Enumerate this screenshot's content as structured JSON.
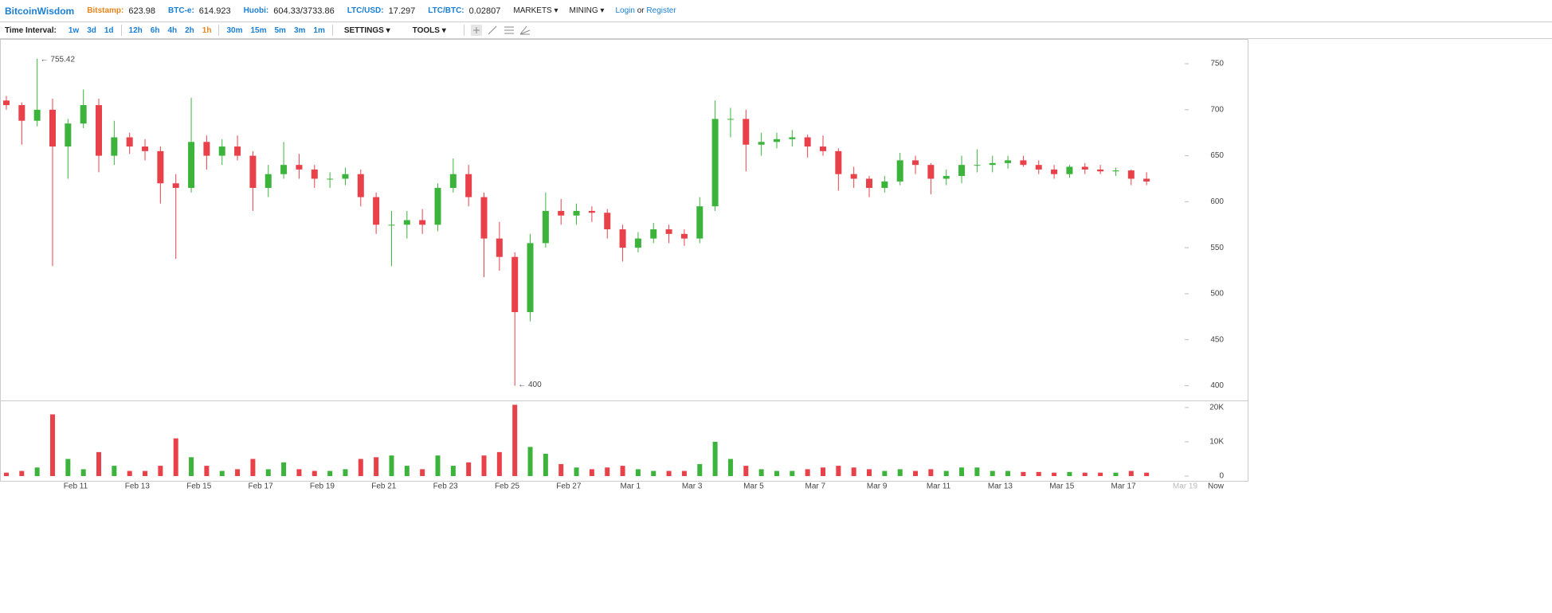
{
  "header": {
    "brand": "BitcoinWisdom",
    "tickers": [
      {
        "name": "Bitstamp:",
        "value": "623.98"
      },
      {
        "name": "BTC-e:",
        "value": "614.923"
      },
      {
        "name": "Huobi:",
        "value": "604.33/3733.86"
      },
      {
        "name": "LTC/USD:",
        "value": "17.297"
      },
      {
        "name": "LTC/BTC:",
        "value": "0.02807"
      }
    ],
    "menus": [
      "MARKETS",
      "MINING"
    ],
    "login": "Login",
    "or": "or",
    "register": "Register"
  },
  "toolbar": {
    "label": "Time Interval:",
    "intervals": [
      "1w",
      "3d",
      "1d",
      "12h",
      "6h",
      "4h",
      "2h",
      "1h",
      "30m",
      "15m",
      "5m",
      "3m",
      "1m"
    ],
    "active": "1h",
    "settings": "SETTINGS",
    "tools": "TOOLS"
  },
  "chart_data": {
    "type": "candlestick",
    "categories": [
      null,
      null,
      null,
      null,
      null,
      "Feb 11",
      null,
      null,
      null,
      "Feb 13",
      null,
      null,
      null,
      "Feb 15",
      null,
      null,
      null,
      "Feb 17",
      null,
      null,
      null,
      "Feb 19",
      null,
      null,
      null,
      "Feb 21",
      null,
      null,
      null,
      "Feb 23",
      null,
      null,
      null,
      "Feb 25",
      null,
      null,
      null,
      "Feb 27",
      null,
      null,
      null,
      "Mar 1",
      null,
      null,
      null,
      "Mar 3",
      null,
      null,
      null,
      "Mar 5",
      null,
      null,
      null,
      "Mar 7",
      null,
      null,
      null,
      "Mar 9",
      null,
      null,
      null,
      "Mar 11",
      null,
      null,
      null,
      "Mar 13",
      null,
      null,
      null,
      "Mar 15",
      null,
      null,
      null,
      "Mar 17",
      null,
      null,
      null,
      "Mar 19"
    ],
    "open": [
      710,
      705,
      688,
      700,
      660,
      685,
      705,
      650,
      670,
      660,
      655,
      620,
      615,
      665,
      650,
      660,
      650,
      615,
      630,
      640,
      635,
      625,
      625,
      630,
      605,
      575,
      575,
      580,
      575,
      615,
      630,
      605,
      560,
      540,
      480,
      555,
      590,
      585,
      590,
      588,
      570,
      550,
      560,
      570,
      565,
      560,
      595,
      690,
      690,
      662,
      665,
      668,
      670,
      660,
      655,
      630,
      625,
      615,
      622,
      645,
      640,
      625,
      628,
      640,
      640,
      642,
      645,
      640,
      635,
      630,
      638,
      635,
      633,
      634,
      625,
      null,
      null,
      null
    ],
    "high": [
      715,
      708,
      755.42,
      712,
      690,
      722,
      712,
      688,
      675,
      668,
      660,
      630,
      713,
      672,
      668,
      672,
      655,
      640,
      665,
      652,
      640,
      632,
      637,
      635,
      610,
      590,
      590,
      592,
      620,
      647,
      640,
      610,
      578,
      545,
      565,
      610,
      603,
      598,
      595,
      592,
      575,
      567,
      577,
      575,
      570,
      605,
      710,
      702,
      700,
      675,
      675,
      678,
      673,
      672,
      658,
      638,
      628,
      628,
      653,
      650,
      642,
      635,
      650,
      657,
      650,
      650,
      650,
      645,
      640,
      640,
      642,
      640,
      637,
      635,
      632,
      null,
      null,
      null
    ],
    "low": [
      700,
      662,
      682,
      530,
      625,
      680,
      632,
      640,
      652,
      645,
      598,
      538,
      610,
      635,
      640,
      645,
      590,
      605,
      625,
      625,
      615,
      615,
      618,
      595,
      565,
      530,
      560,
      565,
      568,
      610,
      595,
      518,
      525,
      400,
      470,
      550,
      575,
      575,
      578,
      560,
      535,
      545,
      555,
      555,
      552,
      555,
      590,
      670,
      633,
      650,
      658,
      660,
      648,
      650,
      612,
      615,
      605,
      610,
      618,
      630,
      608,
      618,
      620,
      632,
      632,
      636,
      638,
      630,
      625,
      626,
      630,
      630,
      628,
      618,
      618,
      null,
      null,
      null
    ],
    "close": [
      705,
      688,
      700,
      660,
      685,
      705,
      650,
      670,
      660,
      655,
      620,
      615,
      665,
      650,
      660,
      650,
      615,
      630,
      640,
      635,
      625,
      625,
      630,
      605,
      575,
      575,
      580,
      575,
      615,
      630,
      605,
      560,
      540,
      480,
      555,
      590,
      585,
      590,
      588,
      570,
      550,
      560,
      570,
      565,
      560,
      595,
      690,
      690,
      662,
      665,
      668,
      670,
      660,
      655,
      630,
      625,
      615,
      622,
      645,
      640,
      625,
      628,
      640,
      640,
      642,
      645,
      640,
      635,
      630,
      638,
      635,
      633,
      634,
      625,
      622,
      null,
      null,
      null
    ],
    "volume": [
      1000,
      1500,
      2500,
      18000,
      5000,
      2000,
      7000,
      3000,
      1500,
      1500,
      3000,
      11000,
      5500,
      3000,
      1500,
      2000,
      5000,
      2000,
      4000,
      2000,
      1500,
      1500,
      2000,
      5000,
      5500,
      6000,
      3000,
      2000,
      6000,
      3000,
      4000,
      6000,
      7000,
      20800,
      8500,
      6500,
      3500,
      2500,
      2000,
      2500,
      3000,
      2000,
      1500,
      1500,
      1500,
      3500,
      10000,
      5000,
      3000,
      2000,
      1500,
      1500,
      2000,
      2500,
      3000,
      2500,
      2000,
      1500,
      2000,
      1500,
      2000,
      1500,
      2500,
      2500,
      1500,
      1500,
      1200,
      1200,
      1000,
      1200,
      1000,
      1000,
      1000,
      1500,
      1000,
      null,
      null,
      null
    ],
    "ylim": [
      384,
      776
    ],
    "yticks": [
      400,
      450,
      500,
      550,
      600,
      650,
      700,
      750
    ],
    "volume_ylim": [
      0,
      21600
    ],
    "volume_yticks": [
      0,
      {
        "value": 10000,
        "label": "10K"
      },
      {
        "value": 20000,
        "label": "20K"
      }
    ],
    "high_label": "← 755.42",
    "low_label": "← 400",
    "x_end_label": "Now",
    "up_color": "#3cb43c",
    "down_color": "#e8414a"
  }
}
